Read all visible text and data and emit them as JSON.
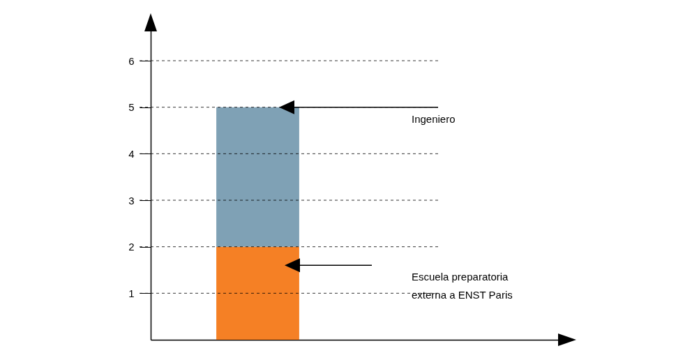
{
  "chart_data": {
    "type": "bar",
    "stacked": true,
    "categories": [
      null
    ],
    "series": [
      {
        "name": "Escuela preparatoria\nexterna a ENST Paris",
        "color": "#f58025",
        "values": [
          2
        ]
      },
      {
        "name": "Ingeniero",
        "color": "#7fa1b5",
        "values": [
          3
        ]
      }
    ],
    "ylim": [
      0,
      6.9
    ],
    "yticks": [
      1,
      2,
      3,
      4,
      5,
      6
    ],
    "grid": "y",
    "tick_labels": "y"
  }
}
